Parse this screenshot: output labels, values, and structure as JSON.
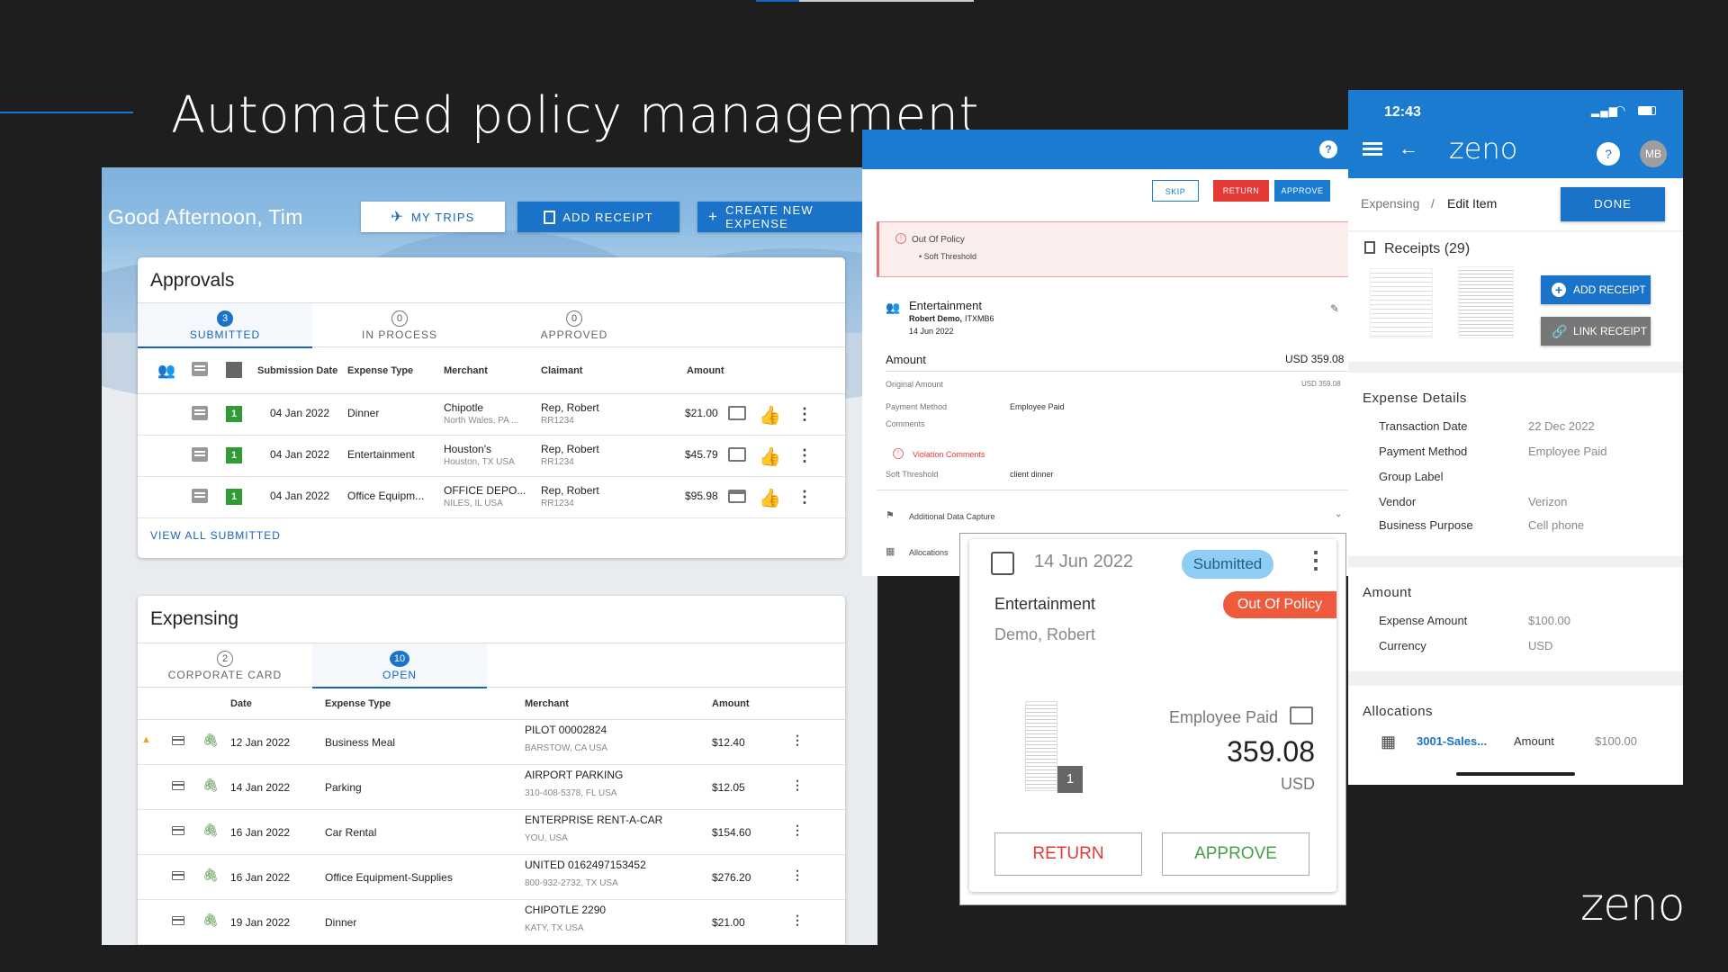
{
  "slide": {
    "title": "Automated policy management",
    "logo": "zeno"
  },
  "dashboard": {
    "greeting": "Good Afternoon, Tim",
    "buttons": {
      "trips": "MY TRIPS",
      "receipt": "ADD RECEIPT",
      "create": "CREATE NEW EXPENSE"
    },
    "approvals": {
      "title": "Approvals",
      "tabs": [
        {
          "count": "3",
          "label": "SUBMITTED"
        },
        {
          "count": "0",
          "label": "IN PROCESS"
        },
        {
          "count": "0",
          "label": "APPROVED"
        }
      ],
      "headers": {
        "date": "Submission Date",
        "type": "Expense Type",
        "merchant": "Merchant",
        "claimant": "Claimant",
        "amount": "Amount"
      },
      "rows": [
        {
          "badge": "1",
          "date": "04 Jan 2022",
          "type": "Dinner",
          "merchant": "Chipotle",
          "merchant_loc": "North Wales, PA ...",
          "claimant": "Rep, Robert",
          "claimant_id": "RR1234",
          "amount": "$21.00"
        },
        {
          "badge": "1",
          "date": "04 Jan 2022",
          "type": "Entertainment",
          "merchant": "Houston's",
          "merchant_loc": "Houston, TX USA",
          "claimant": "Rep, Robert",
          "claimant_id": "RR1234",
          "amount": "$45.79"
        },
        {
          "badge": "1",
          "date": "04 Jan 2022",
          "type": "Office Equipm...",
          "merchant": "OFFICE DEPO...",
          "merchant_loc": "NILES, IL USA",
          "claimant": "Rep, Robert",
          "claimant_id": "RR1234",
          "amount": "$95.98"
        }
      ],
      "view_all": "VIEW ALL SUBMITTED"
    },
    "expensing": {
      "title": "Expensing",
      "tabs": [
        {
          "count": "2",
          "label": "CORPORATE CARD"
        },
        {
          "count": "10",
          "label": "OPEN"
        }
      ],
      "headers": {
        "date": "Date",
        "type": "Expense Type",
        "merchant": "Merchant",
        "amount": "Amount"
      },
      "rows": [
        {
          "warn": "▲",
          "date": "12 Jan 2022",
          "type": "Business Meal",
          "merchant": "PILOT 00002824",
          "merchant_loc": "BARSTOW, CA USA",
          "amount": "$12.40"
        },
        {
          "warn": "",
          "date": "14 Jan 2022",
          "type": "Parking",
          "merchant": "AIRPORT PARKING",
          "merchant_loc": "310-408-5378, FL USA",
          "amount": "$12.05"
        },
        {
          "warn": "",
          "date": "16 Jan 2022",
          "type": "Car Rental",
          "merchant": "ENTERPRISE RENT-A-CAR",
          "merchant_loc": "YOU, USA",
          "amount": "$154.60"
        },
        {
          "warn": "",
          "date": "16 Jan 2022",
          "type": "Office Equipment-Supplies",
          "merchant": "UNITED 0162497153452",
          "merchant_loc": "800-932-2732, TX USA",
          "amount": "$276.20"
        },
        {
          "warn": "",
          "date": "19 Jan 2022",
          "type": "Dinner",
          "merchant": "CHIPOTLE 2290",
          "merchant_loc": "KATY, TX USA",
          "amount": "$21.00"
        }
      ]
    }
  },
  "detail": {
    "help": "?",
    "actions": {
      "skip": "SKIP",
      "return": "RETURN",
      "approve": "APPROVE"
    },
    "policy": {
      "title": "Out Of Policy",
      "item": "Soft Threshold"
    },
    "expense": {
      "type": "Entertainment",
      "claimant": "Robert Demo,",
      "claimant_id": "ITXMB6",
      "date": "14 Jun 2022"
    },
    "amount_label": "Amount",
    "amount": "USD 359.08",
    "original_label": "Original Amount",
    "original": "USD 359.08",
    "payment_label": "Payment Method",
    "payment": "Employee Paid",
    "comments_label": "Comments",
    "violation_label": "Violation Comments",
    "soft_label": "Soft Threshold",
    "soft_value": "client dinner",
    "additional": "Additional Data Capture",
    "allocations": "Allocations"
  },
  "approval_card": {
    "date": "14 Jun 2022",
    "status": "Submitted",
    "type": "Entertainment",
    "policy_badge": "Out Of Policy",
    "claimant": "Demo, Robert",
    "payment": "Employee Paid",
    "amount": "359.08",
    "currency": "USD",
    "receipt_count": "1",
    "return": "RETURN",
    "approve": "APPROVE",
    "colors": {
      "return": "#e53935",
      "approve": "#43a047",
      "status_bg": "#8ecdf4",
      "policy_bg": "#ef5a3c"
    }
  },
  "mobile": {
    "time": "12:43",
    "brand": "zeno",
    "help": "?",
    "avatar": "MB",
    "breadcrumb": {
      "parent": "Expensing",
      "sep": "/",
      "current": "Edit Item"
    },
    "done": "DONE",
    "receipts": {
      "title": "Receipts (29)",
      "add": "ADD RECEIPT",
      "link": "LINK RECEIPT"
    },
    "details": {
      "title": "Expense Details",
      "rows": [
        {
          "label": "Transaction Date",
          "value": "22 Dec 2022"
        },
        {
          "label": "Payment Method",
          "value": "Employee Paid"
        },
        {
          "label": "Group Label",
          "value": ""
        },
        {
          "label": "Vendor",
          "value": "Verizon"
        },
        {
          "label": "Business Purpose",
          "value": "Cell phone"
        }
      ]
    },
    "amount": {
      "title": "Amount",
      "rows": [
        {
          "label": "Expense Amount",
          "value": "$100.00"
        },
        {
          "label": "Currency",
          "value": "USD"
        }
      ]
    },
    "allocations": {
      "title": "Allocations",
      "code": "3001-Sales...",
      "amount_label": "Amount",
      "amount": "$100.00"
    }
  }
}
